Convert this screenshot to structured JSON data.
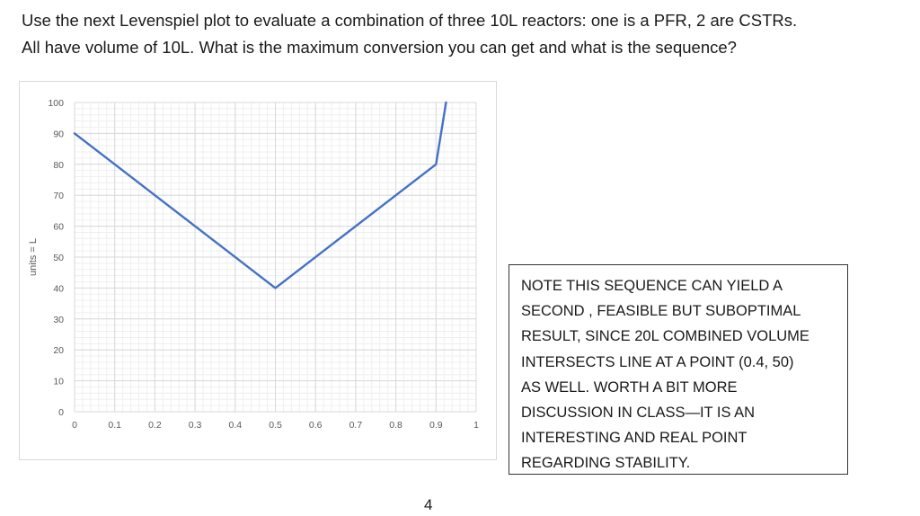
{
  "question": {
    "line1": "Use the next Levenspiel plot to evaluate a combination of three 10L reactors:  one is a PFR, 2 are CSTRs.",
    "line2": "All have volume of 10L.  What is the maximum conversion you can get and what is the sequence?"
  },
  "note": {
    "lines": [
      "NOTE THIS SEQUENCE CAN YIELD A",
      "SECOND , FEASIBLE BUT SUBOPTIMAL",
      "RESULT, SINCE 20L COMBINED VOLUME",
      "INTERSECTS LINE AT A POINT (0.4, 50)",
      "AS WELL.  WORTH A BIT MORE",
      "DISCUSSION IN CLASS—IT IS AN",
      "INTERESTING AND REAL POINT",
      "REGARDING STABILITY."
    ]
  },
  "page_number": "4",
  "chart_data": {
    "type": "line",
    "title": "",
    "xlabel": "",
    "ylabel": "units = L",
    "xlim": [
      0,
      1
    ],
    "ylim": [
      0,
      100
    ],
    "xticks": [
      "0",
      "0.1",
      "0.2",
      "0.3",
      "0.4",
      "0.5",
      "0.6",
      "0.7",
      "0.8",
      "0.9",
      "1"
    ],
    "yticks": [
      "0",
      "10",
      "20",
      "30",
      "40",
      "50",
      "60",
      "70",
      "80",
      "90",
      "100"
    ],
    "grid": true,
    "legend": "none",
    "series": [
      {
        "x": [
          0,
          0.5,
          0.9,
          0.925
        ],
        "y": [
          90,
          40,
          80,
          100
        ],
        "color": "#4472c4"
      }
    ],
    "colors": {
      "line": "#4472c4",
      "grid": "#d9d9d9",
      "tick_text": "#595959"
    }
  }
}
